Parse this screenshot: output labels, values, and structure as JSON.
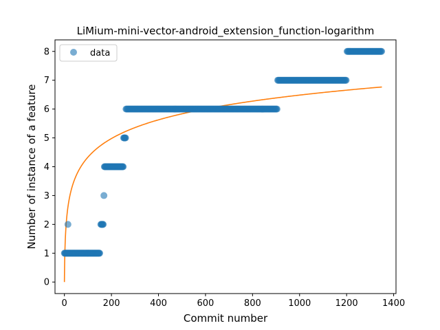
{
  "chart_data": {
    "type": "scatter",
    "title": "LiMium-mini-vector-android_extension_function-logarithm",
    "xlabel": "Commit number",
    "ylabel": "Number of instance of a feature",
    "xlim": [
      -40,
      1410
    ],
    "ylim": [
      -0.4,
      8.4
    ],
    "xticks": [
      0,
      200,
      400,
      600,
      800,
      1000,
      1200,
      1400
    ],
    "yticks": [
      0,
      1,
      2,
      3,
      4,
      5,
      6,
      7,
      8
    ],
    "grid": false,
    "legend": {
      "position": "top-left",
      "entries": [
        "data"
      ]
    },
    "series": [
      {
        "name": "data",
        "kind": "scatter",
        "color": "#1f77b4",
        "runs": [
          {
            "y": 1,
            "x_from": 0,
            "x_to": 150,
            "step": 2
          },
          {
            "y": 2,
            "x_from": 15,
            "x_to": 15,
            "step": 1
          },
          {
            "y": 2,
            "x_from": 155,
            "x_to": 165,
            "step": 2
          },
          {
            "y": 3,
            "x_from": 168,
            "x_to": 168,
            "step": 1
          },
          {
            "y": 4,
            "x_from": 170,
            "x_to": 250,
            "step": 2
          },
          {
            "y": 5,
            "x_from": 252,
            "x_to": 260,
            "step": 2
          },
          {
            "y": 6,
            "x_from": 262,
            "x_to": 905,
            "step": 3
          },
          {
            "y": 7,
            "x_from": 907,
            "x_to": 1200,
            "step": 3
          },
          {
            "y": 8,
            "x_from": 1202,
            "x_to": 1350,
            "step": 3
          }
        ]
      },
      {
        "kind": "line",
        "color": "#ff7f0e",
        "fit": "logarithmic",
        "coefficients": {
          "a": 0.9386,
          "b": 0
        },
        "x_range": [
          0,
          1350
        ],
        "sample_points": [
          [
            0,
            0
          ],
          [
            10,
            2.25
          ],
          [
            100,
            4.33
          ],
          [
            300,
            5.35
          ],
          [
            600,
            6.01
          ],
          [
            900,
            6.39
          ],
          [
            1350,
            6.77
          ]
        ]
      }
    ]
  }
}
